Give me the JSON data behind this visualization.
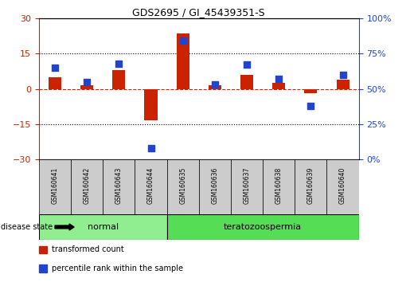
{
  "title": "GDS2695 / GI_45439351-S",
  "samples": [
    "GSM160641",
    "GSM160642",
    "GSM160643",
    "GSM160644",
    "GSM160635",
    "GSM160636",
    "GSM160637",
    "GSM160638",
    "GSM160639",
    "GSM160640"
  ],
  "transformed_count": [
    5.0,
    1.5,
    8.0,
    -13.5,
    23.5,
    1.5,
    6.0,
    2.5,
    -2.0,
    4.0
  ],
  "percentile_rank": [
    65,
    55,
    68,
    8,
    84,
    53,
    67,
    57,
    38,
    60
  ],
  "ylim_left": [
    -30,
    30
  ],
  "ylim_right": [
    0,
    100
  ],
  "yticks_left": [
    -30,
    -15,
    0,
    15,
    30
  ],
  "yticks_right": [
    0,
    25,
    50,
    75,
    100
  ],
  "disease_groups": [
    {
      "label": "normal",
      "start": 0,
      "end": 4,
      "color": "#90EE90"
    },
    {
      "label": "teratozoospermia",
      "start": 4,
      "end": 10,
      "color": "#55DD55"
    }
  ],
  "bar_color": "#CC2200",
  "dot_color": "#2244CC",
  "zero_line_color": "#CC2200",
  "grid_color": "#000000",
  "background_color": "#FFFFFF",
  "tick_label_color_left": "#CC2200",
  "tick_label_color_right": "#2244CC",
  "bar_width": 0.4,
  "dot_size": 35,
  "label_box_color": "#CCCCCC",
  "legend_items": [
    {
      "color": "#CC2200",
      "label": "transformed count"
    },
    {
      "color": "#2244CC",
      "label": "percentile rank within the sample"
    }
  ]
}
